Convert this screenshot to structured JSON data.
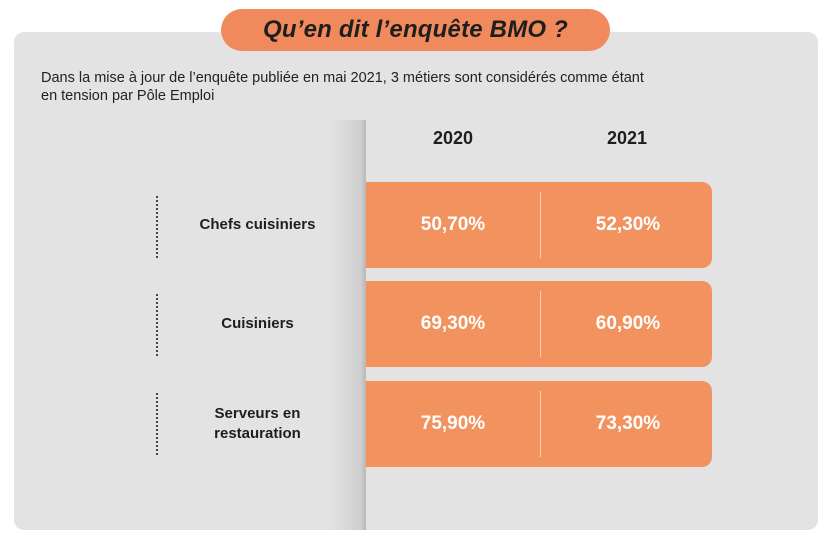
{
  "header": {
    "title": "Qu’en dit l’enquête BMO ?"
  },
  "intro": {
    "line1": "Dans la mise à jour de l’enquête publiée en mai 2021, 3 métiers sont considérés comme étant",
    "line2": "en tension par Pôle Emploi"
  },
  "table": {
    "columns": [
      "2020",
      "2021"
    ],
    "rows": [
      {
        "label_lines": [
          "Chefs cuisiniers"
        ],
        "values": [
          "50,70%",
          "52,30%"
        ]
      },
      {
        "label_lines": [
          "Cuisiniers"
        ],
        "values": [
          "69,30%",
          "60,90%"
        ]
      },
      {
        "label_lines": [
          "Serveurs en",
          "restauration"
        ],
        "values": [
          "75,90%",
          "73,30%"
        ]
      }
    ]
  },
  "colors": {
    "accent": "#f08a5d",
    "row_fill": "#f2925f",
    "card_background": "#e3e3e3"
  }
}
